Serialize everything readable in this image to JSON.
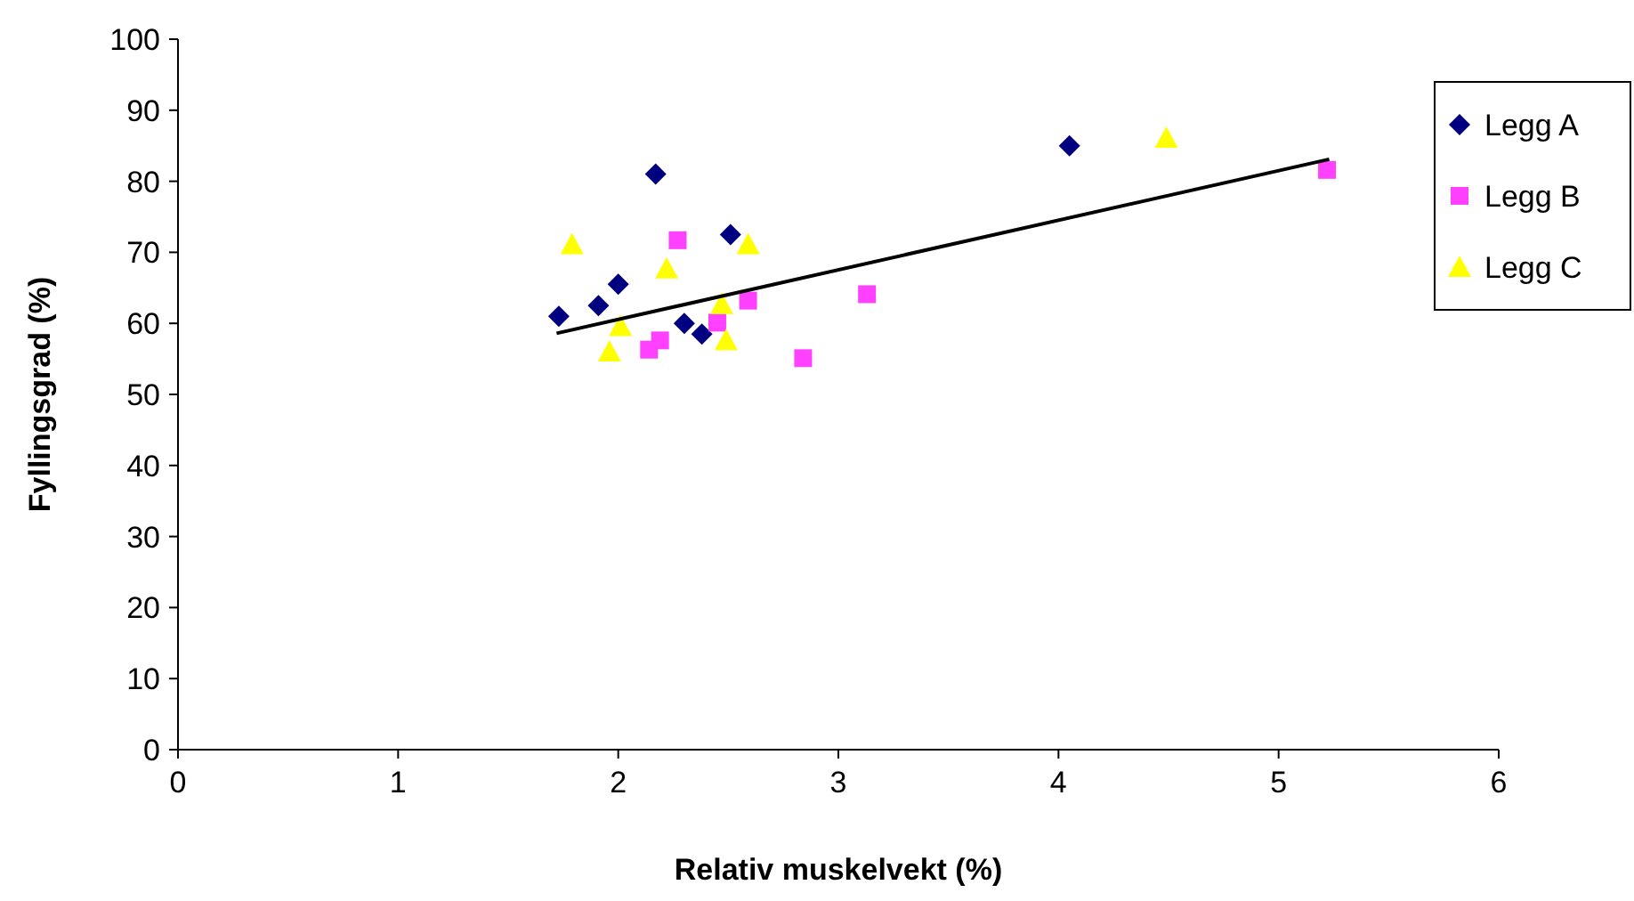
{
  "chart_data": {
    "type": "scatter",
    "xlabel": "Relativ muskelvekt (%)",
    "ylabel": "Fyllingsgrad (%)",
    "xlim": [
      0,
      6
    ],
    "xticks": [
      0,
      1,
      2,
      3,
      4,
      5,
      6
    ],
    "ylim": [
      0,
      100
    ],
    "yticks": [
      0,
      10,
      20,
      30,
      40,
      50,
      60,
      70,
      80,
      90,
      100
    ],
    "grid": false,
    "legend": "right",
    "series": [
      {
        "name": "Legg A",
        "color": "#000080",
        "marker": "diamond",
        "x": [
          1.73,
          1.91,
          2.0,
          2.17,
          2.3,
          2.38,
          2.51,
          4.05
        ],
        "values": [
          61.0,
          62.5,
          65.5,
          81.0,
          60.0,
          58.5,
          72.5,
          85.0
        ]
      },
      {
        "name": "Legg B",
        "color": "#ff40ff",
        "marker": "square",
        "x": [
          2.14,
          2.19,
          2.27,
          2.45,
          2.59,
          2.84,
          3.13,
          5.22
        ],
        "values": [
          56.3,
          57.6,
          71.7,
          60.1,
          63.2,
          55.1,
          64.1,
          81.6
        ]
      },
      {
        "name": "Legg C",
        "color": "#ffff00",
        "marker": "triangle",
        "x": [
          1.79,
          1.96,
          2.01,
          2.22,
          2.47,
          2.49,
          2.59,
          4.49
        ],
        "values": [
          71.1,
          56.0,
          59.6,
          67.7,
          62.7,
          57.6,
          71.1,
          86.1
        ]
      },
      {
        "type": "line",
        "color": "#000000",
        "marker": "none",
        "x": [
          1.72,
          5.23
        ],
        "values": [
          58.6,
          83.1
        ]
      }
    ]
  }
}
